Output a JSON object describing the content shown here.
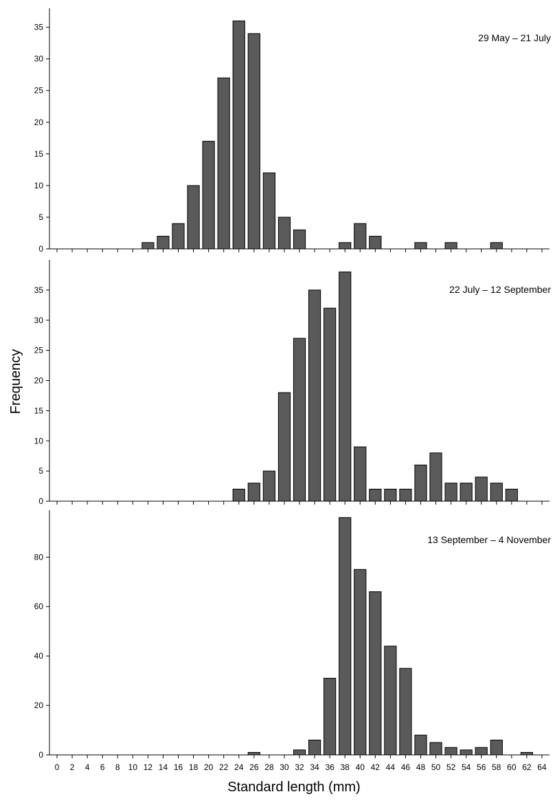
{
  "chart_data": {
    "type": "bar",
    "xlabel": "Standard length (mm)",
    "ylabel": "Frequency",
    "x_ticks": [
      0,
      2,
      4,
      6,
      8,
      10,
      12,
      14,
      16,
      18,
      20,
      22,
      24,
      26,
      28,
      30,
      32,
      34,
      36,
      38,
      40,
      42,
      44,
      46,
      48,
      50,
      52,
      54,
      56,
      58,
      60,
      62,
      64
    ],
    "xlim": [
      -1,
      65
    ],
    "bar_color": "#5a5a5a",
    "panels": [
      {
        "label": "29 May – 21 July",
        "ylim": [
          0,
          38
        ],
        "y_ticks": [
          0,
          5,
          10,
          15,
          20,
          25,
          30,
          35
        ],
        "bins": [
          12,
          14,
          16,
          18,
          20,
          22,
          24,
          26,
          28,
          30,
          32,
          38,
          40,
          42,
          48,
          52,
          58
        ],
        "values": [
          1,
          2,
          4,
          10,
          17,
          27,
          36,
          34,
          12,
          5,
          3,
          1,
          4,
          2,
          1,
          1,
          1
        ]
      },
      {
        "label": "22 July – 12 September",
        "ylim": [
          0,
          40
        ],
        "y_ticks": [
          0,
          5,
          10,
          15,
          20,
          25,
          30,
          35
        ],
        "bins": [
          24,
          26,
          28,
          30,
          32,
          34,
          36,
          38,
          40,
          42,
          44,
          46,
          48,
          50,
          52,
          54,
          56,
          58,
          60
        ],
        "values": [
          2,
          3,
          5,
          18,
          27,
          35,
          32,
          38,
          9,
          2,
          2,
          2,
          6,
          8,
          3,
          3,
          4,
          3,
          2
        ]
      },
      {
        "label": "13 September – 4 November",
        "ylim": [
          0,
          99
        ],
        "y_ticks": [
          0,
          20,
          40,
          60,
          80
        ],
        "bins": [
          26,
          32,
          34,
          36,
          38,
          40,
          42,
          44,
          46,
          48,
          50,
          52,
          54,
          56,
          58,
          62
        ],
        "values": [
          1,
          2,
          6,
          31,
          96,
          75,
          66,
          44,
          35,
          8,
          5,
          3,
          2,
          3,
          6,
          1
        ]
      }
    ]
  }
}
